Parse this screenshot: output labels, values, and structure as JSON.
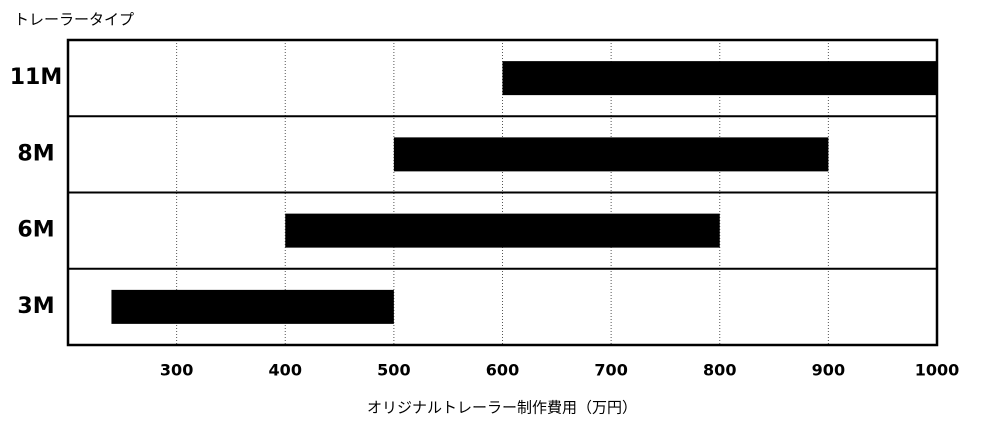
{
  "chart_data": {
    "type": "range-bar",
    "orientation": "horizontal",
    "y_title": "トレーラータイプ",
    "x_title": "オリジナルトレーラー制作費用（万円）",
    "categories": [
      "11M",
      "8M",
      "6M",
      "3M"
    ],
    "low": [
      600,
      500,
      400,
      240
    ],
    "high": [
      1000,
      900,
      800,
      500
    ],
    "color": "#000000",
    "xlim": [
      200,
      1000
    ],
    "xticks": [
      300,
      400,
      500,
      600,
      700,
      800,
      900,
      1000
    ],
    "grid": true
  }
}
